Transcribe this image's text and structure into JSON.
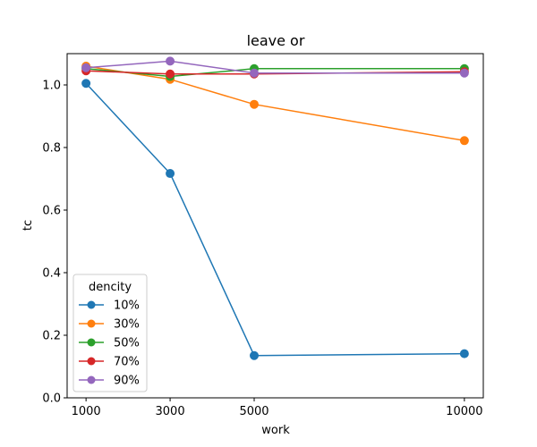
{
  "chart_data": {
    "type": "line",
    "title": "leave or",
    "xlabel": "work",
    "ylabel": "tc",
    "x": [
      1000,
      3000,
      5000,
      10000
    ],
    "x_tick_labels": [
      "1000",
      "3000",
      "5000",
      "10000"
    ],
    "y_ticks": [
      0.0,
      0.2,
      0.4,
      0.6,
      0.8,
      1.0
    ],
    "y_tick_labels": [
      "0.0",
      "0.2",
      "0.4",
      "0.6",
      "0.8",
      "1.0"
    ],
    "xlim": [
      550,
      10450
    ],
    "ylim": [
      0.0,
      1.1
    ],
    "grid": false,
    "legend": {
      "title": "dencity",
      "placement": "lower-left"
    },
    "series": [
      {
        "name": "10%",
        "color": "#1f77b4",
        "values": [
          1.005,
          0.717,
          0.135,
          0.141
        ]
      },
      {
        "name": "30%",
        "color": "#ff7f0e",
        "values": [
          1.06,
          1.018,
          0.938,
          0.822
        ]
      },
      {
        "name": "50%",
        "color": "#2ca02c",
        "values": [
          1.052,
          1.027,
          1.052,
          1.052
        ]
      },
      {
        "name": "70%",
        "color": "#d62728",
        "values": [
          1.045,
          1.035,
          1.035,
          1.042
        ]
      },
      {
        "name": "90%",
        "color": "#9467bd",
        "values": [
          1.055,
          1.076,
          1.038,
          1.038
        ]
      }
    ]
  }
}
